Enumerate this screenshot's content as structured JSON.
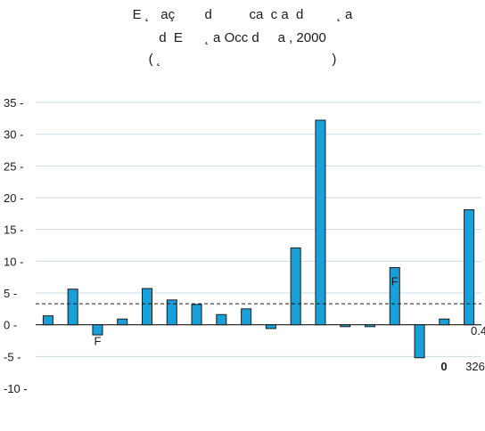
{
  "chart_data": {
    "type": "bar",
    "title_lines": [
      "E ˛   aç        d          ca  c a  d         ˛ a",
      "d  E      ˛ a Occ d     a , 2000",
      "( ˛                                              )"
    ],
    "values": [
      1.4,
      5.6,
      -1.6,
      0.9,
      5.7,
      3.9,
      3.2,
      1.6,
      2.5,
      -0.6,
      12.1,
      32.2,
      -0.3,
      -0.3,
      9.0,
      -5.2,
      0.9,
      18.1
    ],
    "ylim": [
      -10,
      35
    ],
    "yticks": [
      -10,
      -5,
      0,
      5,
      10,
      15,
      20,
      25,
      30,
      35
    ],
    "ytick_labels": [
      "-10 -",
      "-5 -",
      "0 -",
      "5 -",
      "10 -",
      "15 -",
      "20 -",
      "25 -",
      "30 -",
      "35 -"
    ],
    "grid": true,
    "bar_color": "#1aa0d8",
    "grid_color": "#c9dbe8",
    "reference_line": {
      "value": 3.3,
      "label": "0.4"
    },
    "annotations": [
      {
        "text": "F",
        "bar": 2,
        "y": -3.2
      },
      {
        "text": "F",
        "bar": 14,
        "y": 6.2
      },
      {
        "text": "0",
        "bar": 16,
        "y": -7.2,
        "bold": true
      },
      {
        "text": "326",
        "bar": 17,
        "y": -7.2
      }
    ]
  }
}
